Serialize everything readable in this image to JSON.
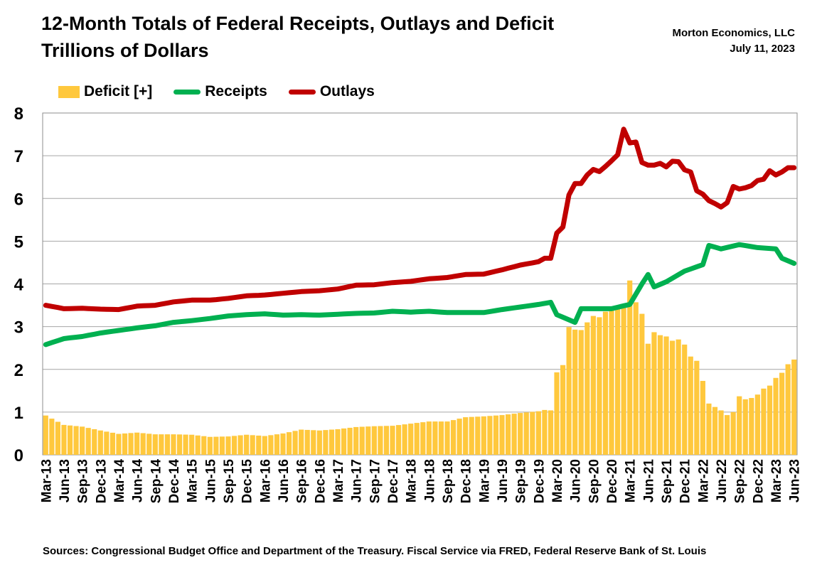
{
  "header": {
    "title_line1": "12-Month Totals of Federal Receipts, Outlays and Deficit",
    "title_line2": "Trillions of Dollars",
    "author": "Morton Economics, LLC",
    "date": "July 11, 2023"
  },
  "footer": {
    "sources": "Sources: Congressional Budget Office and Department of the Treasury. Fiscal Service via FRED, Federal Reserve Bank of St. Louis"
  },
  "colors": {
    "deficit": "#FFC83D",
    "receipts": "#00B050",
    "outlays": "#C00000",
    "grid": "#A6A6A6"
  },
  "chart_data": {
    "type": "bar+line",
    "title": "12-Month Totals of Federal Receipts, Outlays and Deficit",
    "subtitle": "Trillions of Dollars",
    "ylim": [
      0,
      8
    ],
    "yticks": [
      0,
      1,
      2,
      3,
      4,
      5,
      6,
      7,
      8
    ],
    "grid": true,
    "legend_position": "top-left",
    "start_month": "Mar-13",
    "end_month": "Jun-23",
    "tick_labels": [
      "Mar-13",
      "Jun-13",
      "Sep-13",
      "Dec-13",
      "Mar-14",
      "Jun-14",
      "Sep-14",
      "Dec-14",
      "Mar-15",
      "Jun-15",
      "Sep-15",
      "Dec-15",
      "Mar-16",
      "Jun-16",
      "Sep-16",
      "Dec-16",
      "Mar-17",
      "Jun-17",
      "Sep-17",
      "Dec-17",
      "Mar-18",
      "Jun-18",
      "Sep-18",
      "Dec-18",
      "Mar-19",
      "Jun-19",
      "Sep-19",
      "Dec-19",
      "Mar-20",
      "Jun-20",
      "Sep-20",
      "Dec-20",
      "Mar-21",
      "Jun-21",
      "Sep-21",
      "Dec-21",
      "Mar-22",
      "Jun-22",
      "Sep-22",
      "Dec-22",
      "Mar-23",
      "Jun-23"
    ],
    "series": [
      {
        "name": "Deficit [+]",
        "kind": "bar",
        "anchors": [
          [
            "Mar-13",
            0.92
          ],
          [
            "Jun-13",
            0.7
          ],
          [
            "Sep-13",
            0.66
          ],
          [
            "Dec-13",
            0.57
          ],
          [
            "Mar-14",
            0.49
          ],
          [
            "Jun-14",
            0.52
          ],
          [
            "Sep-14",
            0.48
          ],
          [
            "Dec-14",
            0.48
          ],
          [
            "Mar-15",
            0.47
          ],
          [
            "Jun-15",
            0.42
          ],
          [
            "Sep-15",
            0.43
          ],
          [
            "Dec-15",
            0.47
          ],
          [
            "Mar-16",
            0.44
          ],
          [
            "Jun-16",
            0.5
          ],
          [
            "Sep-16",
            0.59
          ],
          [
            "Dec-16",
            0.57
          ],
          [
            "Mar-17",
            0.6
          ],
          [
            "Jun-17",
            0.65
          ],
          [
            "Sep-17",
            0.67
          ],
          [
            "Dec-17",
            0.68
          ],
          [
            "Mar-18",
            0.73
          ],
          [
            "Jun-18",
            0.78
          ],
          [
            "Sep-18",
            0.78
          ],
          [
            "Dec-18",
            0.88
          ],
          [
            "Mar-19",
            0.9
          ],
          [
            "Jun-19",
            0.93
          ],
          [
            "Sep-19",
            0.98
          ],
          [
            "Dec-19",
            1.02
          ],
          [
            "Jan-20",
            1.05
          ],
          [
            "Feb-20",
            1.04
          ],
          [
            "Mar-20",
            1.93
          ],
          [
            "Apr-20",
            2.1
          ],
          [
            "May-20",
            2.99
          ],
          [
            "Jun-20",
            2.93
          ],
          [
            "Jul-20",
            2.92
          ],
          [
            "Aug-20",
            3.1
          ],
          [
            "Sep-20",
            3.25
          ],
          [
            "Oct-20",
            3.22
          ],
          [
            "Nov-20",
            3.35
          ],
          [
            "Dec-20",
            3.4
          ],
          [
            "Jan-21",
            3.42
          ],
          [
            "Feb-21",
            3.5
          ],
          [
            "Mar-21",
            4.08
          ],
          [
            "Apr-21",
            3.57
          ],
          [
            "May-21",
            3.3
          ],
          [
            "Jun-21",
            2.6
          ],
          [
            "Jul-21",
            2.87
          ],
          [
            "Aug-21",
            2.8
          ],
          [
            "Sep-21",
            2.77
          ],
          [
            "Oct-21",
            2.67
          ],
          [
            "Nov-21",
            2.7
          ],
          [
            "Dec-21",
            2.58
          ],
          [
            "Jan-22",
            2.3
          ],
          [
            "Feb-22",
            2.2
          ],
          [
            "Mar-22",
            1.73
          ],
          [
            "Apr-22",
            1.2
          ],
          [
            "May-22",
            1.12
          ],
          [
            "Jun-22",
            1.04
          ],
          [
            "Jul-22",
            0.93
          ],
          [
            "Aug-22",
            1.0
          ],
          [
            "Sep-22",
            1.37
          ],
          [
            "Oct-22",
            1.3
          ],
          [
            "Nov-22",
            1.33
          ],
          [
            "Dec-22",
            1.41
          ],
          [
            "Jan-23",
            1.55
          ],
          [
            "Feb-23",
            1.62
          ],
          [
            "Mar-23",
            1.8
          ],
          [
            "Apr-23",
            1.92
          ],
          [
            "May-23",
            2.12
          ],
          [
            "Jun-23",
            2.23
          ]
        ]
      },
      {
        "name": "Receipts",
        "kind": "line",
        "anchors": [
          [
            "Mar-13",
            2.58
          ],
          [
            "Jun-13",
            2.72
          ],
          [
            "Sep-13",
            2.77
          ],
          [
            "Dec-13",
            2.85
          ],
          [
            "Mar-14",
            2.91
          ],
          [
            "Jun-14",
            2.97
          ],
          [
            "Sep-14",
            3.02
          ],
          [
            "Dec-14",
            3.1
          ],
          [
            "Mar-15",
            3.14
          ],
          [
            "Jun-15",
            3.19
          ],
          [
            "Sep-15",
            3.25
          ],
          [
            "Dec-15",
            3.28
          ],
          [
            "Mar-16",
            3.3
          ],
          [
            "Jun-16",
            3.27
          ],
          [
            "Sep-16",
            3.28
          ],
          [
            "Dec-16",
            3.27
          ],
          [
            "Mar-17",
            3.29
          ],
          [
            "Jun-17",
            3.31
          ],
          [
            "Sep-17",
            3.32
          ],
          [
            "Dec-17",
            3.36
          ],
          [
            "Mar-18",
            3.34
          ],
          [
            "Jun-18",
            3.36
          ],
          [
            "Sep-18",
            3.33
          ],
          [
            "Dec-18",
            3.33
          ],
          [
            "Mar-19",
            3.33
          ],
          [
            "Jun-19",
            3.4
          ],
          [
            "Sep-19",
            3.46
          ],
          [
            "Dec-19",
            3.52
          ],
          [
            "Feb-20",
            3.57
          ],
          [
            "Mar-20",
            3.28
          ],
          [
            "Jun-20",
            3.1
          ],
          [
            "Jul-20",
            3.42
          ],
          [
            "Sep-20",
            3.42
          ],
          [
            "Dec-20",
            3.42
          ],
          [
            "Mar-21",
            3.52
          ],
          [
            "May-21",
            4.0
          ],
          [
            "Jun-21",
            4.22
          ],
          [
            "Jul-21",
            3.93
          ],
          [
            "Sep-21",
            4.05
          ],
          [
            "Dec-21",
            4.3
          ],
          [
            "Mar-22",
            4.45
          ],
          [
            "Apr-22",
            4.9
          ],
          [
            "Jun-22",
            4.82
          ],
          [
            "Sep-22",
            4.92
          ],
          [
            "Dec-22",
            4.85
          ],
          [
            "Mar-23",
            4.82
          ],
          [
            "Apr-23",
            4.6
          ],
          [
            "Jun-23",
            4.48
          ]
        ]
      },
      {
        "name": "Outlays",
        "kind": "line",
        "anchors": [
          [
            "Mar-13",
            3.5
          ],
          [
            "Jun-13",
            3.42
          ],
          [
            "Sep-13",
            3.43
          ],
          [
            "Dec-13",
            3.41
          ],
          [
            "Mar-14",
            3.4
          ],
          [
            "Jun-14",
            3.48
          ],
          [
            "Sep-14",
            3.5
          ],
          [
            "Dec-14",
            3.58
          ],
          [
            "Mar-15",
            3.62
          ],
          [
            "Jun-15",
            3.62
          ],
          [
            "Sep-15",
            3.66
          ],
          [
            "Dec-15",
            3.72
          ],
          [
            "Mar-16",
            3.74
          ],
          [
            "Jun-16",
            3.78
          ],
          [
            "Sep-16",
            3.82
          ],
          [
            "Dec-16",
            3.84
          ],
          [
            "Mar-17",
            3.88
          ],
          [
            "Jun-17",
            3.97
          ],
          [
            "Sep-17",
            3.98
          ],
          [
            "Dec-17",
            4.03
          ],
          [
            "Mar-18",
            4.06
          ],
          [
            "Jun-18",
            4.12
          ],
          [
            "Sep-18",
            4.15
          ],
          [
            "Dec-18",
            4.22
          ],
          [
            "Mar-19",
            4.23
          ],
          [
            "Jun-19",
            4.33
          ],
          [
            "Sep-19",
            4.44
          ],
          [
            "Dec-19",
            4.52
          ],
          [
            "Jan-20",
            4.6
          ],
          [
            "Feb-20",
            4.6
          ],
          [
            "Mar-20",
            5.19
          ],
          [
            "Apr-20",
            5.33
          ],
          [
            "May-20",
            6.08
          ],
          [
            "Jun-20",
            6.35
          ],
          [
            "Jul-20",
            6.35
          ],
          [
            "Aug-20",
            6.55
          ],
          [
            "Sep-20",
            6.68
          ],
          [
            "Oct-20",
            6.63
          ],
          [
            "Nov-20",
            6.75
          ],
          [
            "Dec-20",
            6.88
          ],
          [
            "Jan-21",
            7.02
          ],
          [
            "Feb-21",
            7.62
          ],
          [
            "Mar-21",
            7.3
          ],
          [
            "Apr-21",
            7.32
          ],
          [
            "May-21",
            6.84
          ],
          [
            "Jun-21",
            6.78
          ],
          [
            "Jul-21",
            6.78
          ],
          [
            "Aug-21",
            6.82
          ],
          [
            "Sep-21",
            6.74
          ],
          [
            "Oct-21",
            6.87
          ],
          [
            "Nov-21",
            6.86
          ],
          [
            "Dec-21",
            6.67
          ],
          [
            "Jan-22",
            6.62
          ],
          [
            "Feb-22",
            6.18
          ],
          [
            "Mar-22",
            6.1
          ],
          [
            "Apr-22",
            5.95
          ],
          [
            "May-22",
            5.88
          ],
          [
            "Jun-22",
            5.8
          ],
          [
            "Jul-22",
            5.9
          ],
          [
            "Aug-22",
            6.28
          ],
          [
            "Sep-22",
            6.22
          ],
          [
            "Oct-22",
            6.25
          ],
          [
            "Nov-22",
            6.3
          ],
          [
            "Dec-22",
            6.42
          ],
          [
            "Jan-23",
            6.45
          ],
          [
            "Feb-23",
            6.65
          ],
          [
            "Mar-23",
            6.55
          ],
          [
            "Apr-23",
            6.62
          ],
          [
            "May-23",
            6.72
          ],
          [
            "Jun-23",
            6.72
          ]
        ]
      }
    ]
  }
}
